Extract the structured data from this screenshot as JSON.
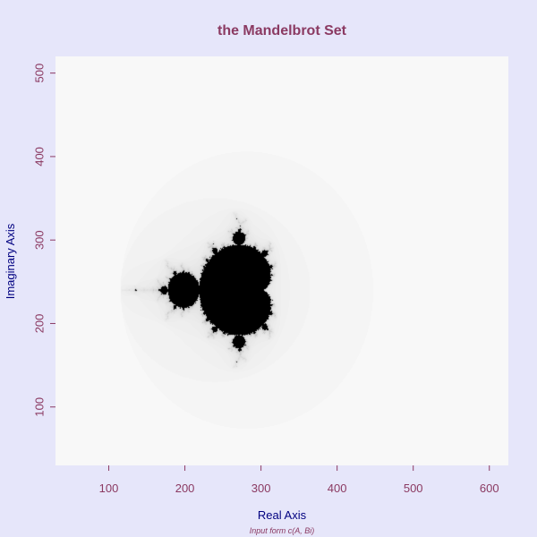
{
  "chart_data": {
    "type": "heatmap",
    "title": "the Mandelbrot Set",
    "subtitle": "Input form c(A, Bi)",
    "xlabel": "Real Axis",
    "ylabel": "Imaginary Axis",
    "xlim": [
      30,
      625
    ],
    "ylim": [
      30,
      520
    ],
    "x_ticks": [
      100,
      200,
      300,
      400,
      500,
      600
    ],
    "y_ticks": [
      100,
      200,
      300,
      400,
      500
    ],
    "x_tick_labels": [
      "100",
      "200",
      "300",
      "400",
      "500",
      "600"
    ],
    "y_tick_labels": [
      "100",
      "200",
      "300",
      "400",
      "500"
    ],
    "set_center": [
      240,
      240
    ],
    "set_scale": 83,
    "grid": false,
    "legend": "none",
    "colors": {
      "background": "#e6e6fa",
      "plot_background": "#ffffff",
      "set_color": "#000000",
      "title_color": "#8b3a62",
      "axis_label_color": "#000080",
      "tick_label_color": "#8b3a62",
      "subtitle_color": "#8b3a62"
    }
  }
}
